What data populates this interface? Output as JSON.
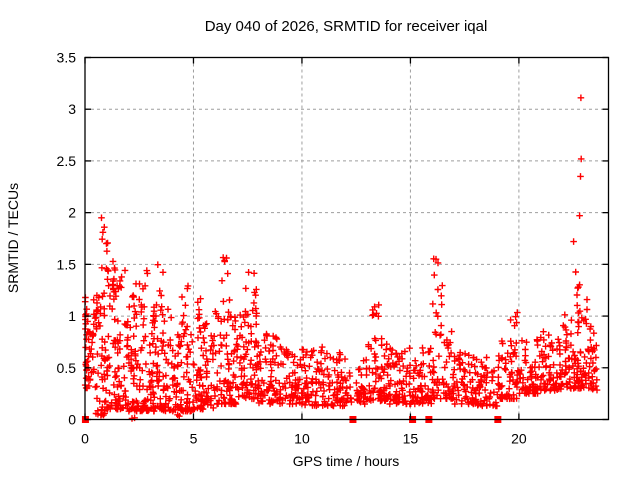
{
  "page": {
    "background": "#ffffff"
  },
  "chart_data": {
    "type": "scatter",
    "title": "Day 040 of 2026, SRMTID for receiver iqal",
    "xlabel": "GPS time / hours",
    "ylabel": "SRMTID / TECUs",
    "xlim": [
      0,
      24.13
    ],
    "ylim": [
      0,
      3.5
    ],
    "xticks": [
      {
        "v": 0,
        "label": "0"
      },
      {
        "v": 5,
        "label": "5"
      },
      {
        "v": 10,
        "label": "10"
      },
      {
        "v": 15,
        "label": "15"
      },
      {
        "v": 20,
        "label": "20"
      }
    ],
    "yticks": [
      {
        "v": 0,
        "label": "0"
      },
      {
        "v": 0.5,
        "label": "0.5"
      },
      {
        "v": 1,
        "label": "1"
      },
      {
        "v": 1.5,
        "label": "1.5"
      },
      {
        "v": 2,
        "label": "2"
      },
      {
        "v": 2.5,
        "label": "2.5"
      },
      {
        "v": 3,
        "label": "3"
      },
      {
        "v": 3.5,
        "label": "3.5"
      }
    ],
    "grid": {
      "show": true,
      "style": "dashed",
      "color": "#9e9e9e"
    },
    "axis_color": "#000000",
    "marker": {
      "shape": "plus",
      "color": "#ff0000",
      "size": 7
    },
    "zero_marker": {
      "shape": "filled-square",
      "color": "#ff0000",
      "size": 7
    },
    "seed": 20264040,
    "clusters": [
      [
        0.0,
        0.08,
        6,
        0.5,
        1.15,
        1.0
      ],
      [
        0.0,
        0.5,
        45,
        0.3,
        1.2,
        1.6
      ],
      [
        0.5,
        1.0,
        45,
        0.05,
        1.3,
        1.4
      ],
      [
        0.7,
        1.1,
        11,
        1.3,
        1.9,
        1.0
      ],
      [
        0.4,
        0.95,
        6,
        0.02,
        0.07,
        1.0
      ],
      [
        1.0,
        2.0,
        95,
        0.1,
        1.45,
        2.0
      ],
      [
        1.2,
        1.6,
        6,
        1.2,
        1.55,
        1.0
      ],
      [
        2.0,
        3.0,
        90,
        0.08,
        1.2,
        2.0
      ],
      [
        2.3,
        3.0,
        6,
        1.1,
        1.52,
        1.0
      ],
      [
        2.1,
        2.3,
        2,
        0.0,
        0.05,
        1.0
      ],
      [
        3.0,
        4.0,
        90,
        0.08,
        1.1,
        1.8
      ],
      [
        3.2,
        3.6,
        5,
        1.1,
        1.5,
        1.0
      ],
      [
        4.0,
        5.0,
        85,
        0.08,
        1.0,
        1.8
      ],
      [
        4.4,
        4.8,
        5,
        1.0,
        1.5,
        1.0
      ],
      [
        4.2,
        4.4,
        2,
        0.0,
        0.06,
        1.0
      ],
      [
        5.0,
        6.0,
        80,
        0.1,
        1.0,
        1.8
      ],
      [
        5.0,
        5.4,
        4,
        1.0,
        1.35,
        1.0
      ],
      [
        6.0,
        7.0,
        80,
        0.15,
        1.05,
        1.8
      ],
      [
        6.3,
        6.7,
        8,
        1.0,
        1.6,
        1.0
      ],
      [
        7.0,
        8.0,
        85,
        0.2,
        1.1,
        1.8
      ],
      [
        7.3,
        7.9,
        7,
        1.1,
        1.52,
        1.0
      ],
      [
        8.0,
        9.0,
        70,
        0.15,
        0.85,
        1.8
      ],
      [
        9.0,
        10.0,
        65,
        0.15,
        0.75,
        1.8
      ],
      [
        10.0,
        11.0,
        65,
        0.13,
        0.7,
        1.8
      ],
      [
        11.0,
        12.0,
        60,
        0.13,
        0.65,
        1.8
      ],
      [
        12.0,
        12.3,
        14,
        0.15,
        0.5,
        1.5
      ],
      [
        12.5,
        13.0,
        32,
        0.15,
        0.6,
        1.5
      ],
      [
        13.0,
        14.0,
        70,
        0.18,
        0.8,
        1.8
      ],
      [
        13.25,
        13.55,
        8,
        0.75,
        1.12,
        1.0
      ],
      [
        14.0,
        15.0,
        70,
        0.15,
        0.7,
        1.8
      ],
      [
        15.0,
        16.0,
        60,
        0.15,
        0.7,
        1.8
      ],
      [
        16.0,
        16.5,
        12,
        0.75,
        1.58,
        1.0
      ],
      [
        16.0,
        17.0,
        62,
        0.2,
        0.85,
        1.8
      ],
      [
        17.0,
        18.0,
        60,
        0.15,
        0.65,
        1.8
      ],
      [
        18.0,
        19.0,
        55,
        0.13,
        0.6,
        1.8
      ],
      [
        19.0,
        20.0,
        60,
        0.2,
        0.8,
        1.8
      ],
      [
        19.6,
        20.0,
        7,
        0.7,
        1.1,
        1.0
      ],
      [
        20.0,
        21.0,
        60,
        0.25,
        0.8,
        1.8
      ],
      [
        21.0,
        22.0,
        65,
        0.28,
        0.85,
        1.8
      ],
      [
        22.0,
        23.0,
        75,
        0.3,
        1.05,
        1.6
      ],
      [
        22.55,
        23.15,
        12,
        0.9,
        1.45,
        1.0
      ],
      [
        23.0,
        23.6,
        40,
        0.28,
        0.9,
        1.6
      ]
    ],
    "outliers": [
      [
        0.02,
        1.18
      ],
      [
        0.76,
        1.95
      ],
      [
        16.18,
        1.55
      ],
      [
        22.52,
        1.72
      ],
      [
        22.8,
        1.97
      ],
      [
        22.84,
        2.35
      ],
      [
        22.87,
        2.52
      ],
      [
        22.86,
        3.11
      ]
    ],
    "zero_points": [
      0.02,
      12.35,
      15.1,
      15.85,
      19.03
    ]
  }
}
